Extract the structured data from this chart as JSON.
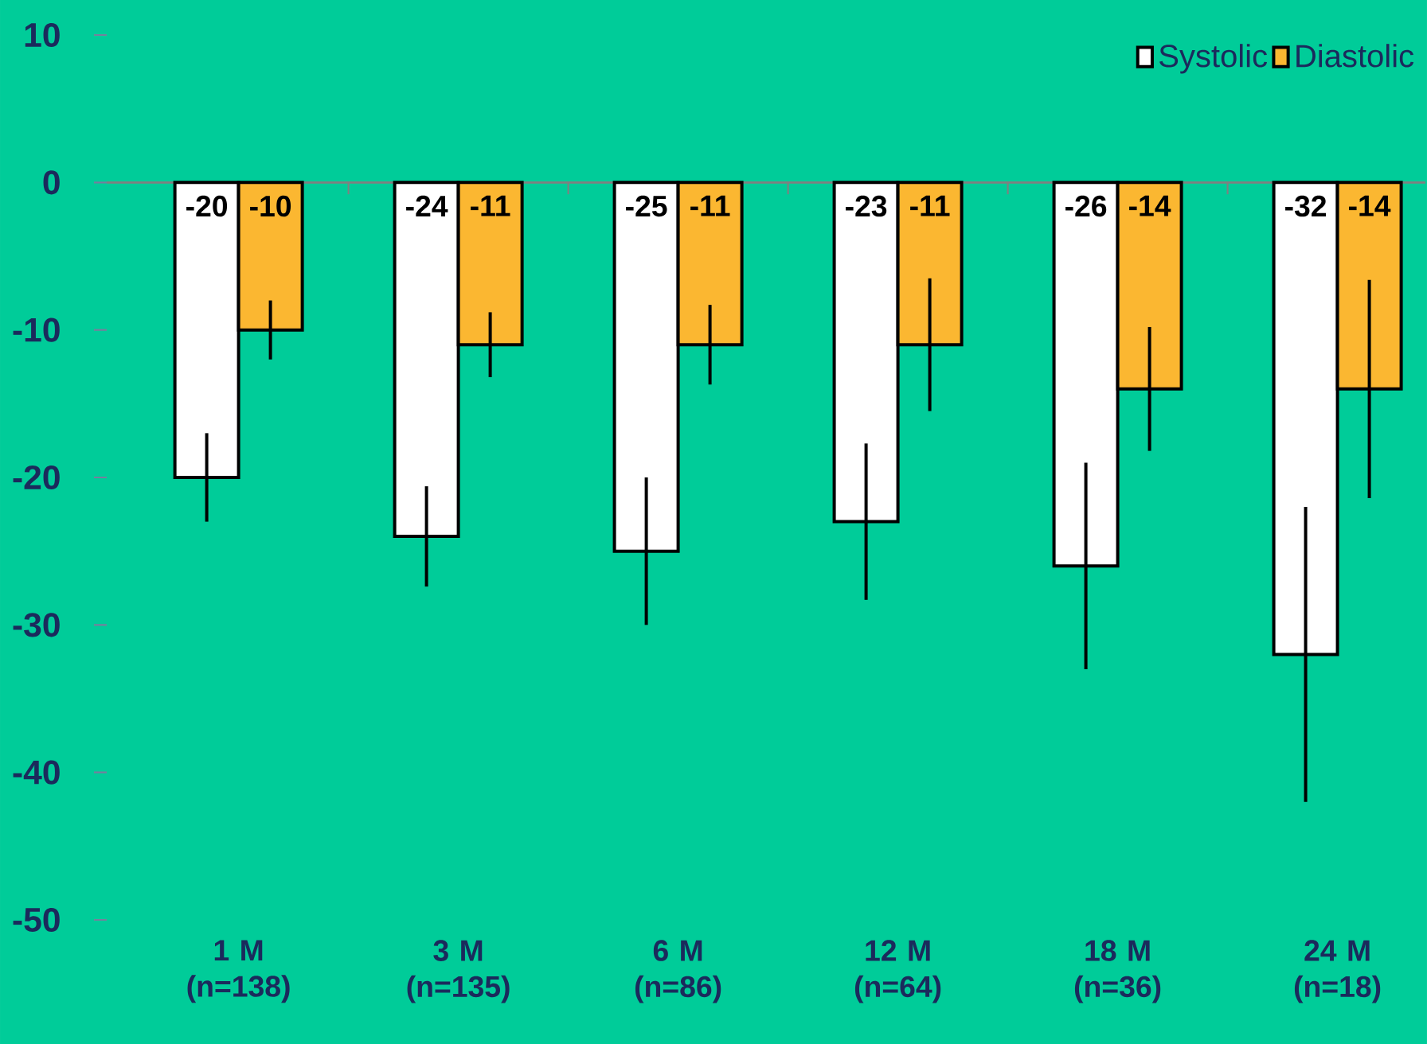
{
  "chart_data": {
    "type": "bar",
    "categories": [
      "1 M (n=138)",
      "3 M (n=135)",
      "6 M (n=86)",
      "12 M (n=64)",
      "18 M (n=36)",
      "24 M (n=18)"
    ],
    "series": [
      {
        "name": "Systolic",
        "color": "#ffffff",
        "values": [
          -20,
          -24,
          -25,
          -23,
          -26,
          -32
        ],
        "errors": [
          3,
          3.4,
          5,
          5.3,
          7,
          10
        ]
      },
      {
        "name": "Diastolic",
        "color": "#fbb731",
        "values": [
          -10,
          -11,
          -11,
          -11,
          -14,
          -14
        ],
        "errors": [
          2,
          2.2,
          2.7,
          4.5,
          4.2,
          7.4
        ]
      }
    ],
    "ylim": [
      -50,
      10
    ],
    "yticks": [
      -50,
      -40,
      -30,
      -20,
      -10,
      0,
      10
    ],
    "data_labels": true,
    "legend": "top right"
  }
}
